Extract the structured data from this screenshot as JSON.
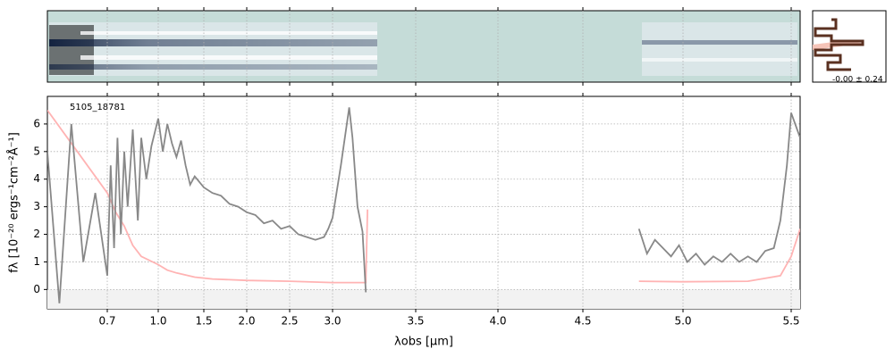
{
  "chart_data": {
    "type": "line",
    "annotation": "5105_18781",
    "x_label": "λobs [μm]",
    "y_label": "fλ [10⁻²⁰ ergs⁻¹cm⁻²Å⁻¹]",
    "profile_label": "-0.00 ± 0.24",
    "xlim": [
      0.6,
      5.52
    ],
    "xticks": [
      0.7,
      {
        "value": 1.0,
        "label": "1.0"
      },
      1.5,
      {
        "value": 2.0,
        "label": "2.0"
      },
      2.5,
      {
        "value": 3.0,
        "label": "3.0"
      },
      3.5,
      {
        "value": 4.0,
        "label": "4.0"
      },
      4.5,
      {
        "value": 5.0,
        "label": "5.0"
      },
      5.5
    ],
    "ylim": [
      -0.7,
      7.0
    ],
    "yticks": [
      0,
      1,
      2,
      3,
      4,
      5,
      6
    ],
    "grid": true,
    "series": [
      {
        "color": "#ffb3b3",
        "x": [
          0.6,
          0.65,
          0.7,
          0.75,
          0.8,
          0.85,
          0.9,
          1.0,
          1.1,
          1.2,
          1.4,
          1.6,
          2.0,
          2.5,
          3.0,
          3.2,
          3.21,
          4.7,
          4.78,
          5.0,
          5.3,
          5.45,
          5.5,
          5.52
        ],
        "values": [
          6.5,
          5.0,
          3.5,
          2.8,
          2.3,
          1.6,
          1.2,
          0.9,
          0.7,
          0.6,
          0.45,
          0.38,
          0.33,
          0.3,
          0.25,
          0.25,
          2.9,
          null,
          0.3,
          0.28,
          0.3,
          0.5,
          1.2,
          2.2
        ]
      },
      {
        "color": "#888888",
        "x": [
          0.6,
          0.62,
          0.64,
          0.66,
          0.68,
          0.7,
          0.72,
          0.74,
          0.76,
          0.78,
          0.8,
          0.82,
          0.85,
          0.88,
          0.9,
          0.93,
          0.96,
          1.0,
          1.05,
          1.1,
          1.15,
          1.2,
          1.25,
          1.3,
          1.35,
          1.4,
          1.5,
          1.6,
          1.7,
          1.8,
          1.9,
          2.0,
          2.1,
          2.2,
          2.3,
          2.4,
          2.5,
          2.6,
          2.7,
          2.8,
          2.9,
          2.95,
          3.0,
          3.05,
          3.1,
          3.12,
          3.15,
          3.18,
          3.2,
          4.7,
          4.78,
          4.82,
          4.86,
          4.9,
          4.94,
          4.98,
          5.02,
          5.06,
          5.1,
          5.14,
          5.18,
          5.22,
          5.26,
          5.3,
          5.34,
          5.38,
          5.42,
          5.45,
          5.48,
          5.5,
          5.52
        ],
        "values": [
          5.0,
          -0.5,
          6.0,
          1.0,
          3.5,
          0.5,
          4.5,
          1.5,
          5.5,
          2.0,
          5.0,
          3.0,
          5.8,
          2.5,
          5.5,
          4.0,
          5.2,
          6.2,
          5.0,
          6.0,
          5.3,
          4.8,
          5.4,
          4.5,
          3.8,
          4.1,
          3.7,
          3.5,
          3.4,
          3.1,
          3.0,
          2.8,
          2.7,
          2.4,
          2.5,
          2.2,
          2.3,
          2.0,
          1.9,
          1.8,
          1.9,
          2.2,
          2.6,
          4.5,
          6.6,
          5.5,
          3.0,
          2.1,
          -0.1,
          null,
          2.2,
          1.3,
          1.8,
          1.5,
          1.2,
          1.6,
          1.0,
          1.3,
          0.9,
          1.2,
          1.0,
          1.3,
          1.0,
          1.2,
          1.0,
          1.4,
          1.5,
          2.5,
          4.5,
          6.4,
          5.5
        ]
      }
    ]
  }
}
